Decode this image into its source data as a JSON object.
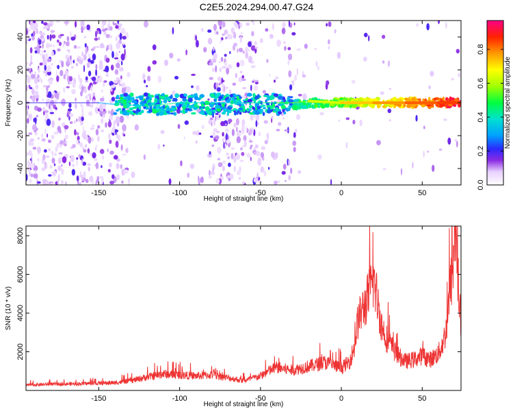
{
  "title": "C2E5.2024.294.00.47.G24",
  "chart_data": [
    {
      "type": "heatmap",
      "xlabel": "Height of straight line (km)",
      "ylabel": "Frequency (Hz)",
      "xlim": [
        -195,
        74
      ],
      "ylim": [
        -50,
        50
      ],
      "xticks": [
        -150,
        -100,
        -50,
        0,
        50
      ],
      "yticks": [
        -40,
        -20,
        0,
        20,
        40
      ],
      "colorbar": {
        "label": "Normalized spectral amplitude",
        "range": [
          0,
          0.97
        ],
        "ticks": [
          0.0,
          0.2,
          0.4,
          0.6,
          0.8
        ]
      },
      "ridge": [
        {
          "x": -195,
          "f": 0,
          "amp": 0.15
        },
        {
          "x": -150,
          "f": 0,
          "amp": 0.2
        },
        {
          "x": -140,
          "f": -1,
          "amp": 0.3
        },
        {
          "x": -120,
          "f": -2,
          "amp": 0.4
        },
        {
          "x": -100,
          "f": 0,
          "amp": 0.45
        },
        {
          "x": -80,
          "f": 0,
          "amp": 0.4
        },
        {
          "x": -60,
          "f": 0,
          "amp": 0.35
        },
        {
          "x": -40,
          "f": 0,
          "amp": 0.45
        },
        {
          "x": -30,
          "f": 0,
          "amp": 0.55
        },
        {
          "x": -20,
          "f": 1,
          "amp": 0.6
        },
        {
          "x": 0,
          "f": 0,
          "amp": 0.65
        },
        {
          "x": 20,
          "f": 0,
          "amp": 0.75
        },
        {
          "x": 40,
          "f": 0,
          "amp": 0.8
        },
        {
          "x": 60,
          "f": 0,
          "amp": 0.85
        },
        {
          "x": 74,
          "f": 0,
          "amp": 0.88
        }
      ]
    },
    {
      "type": "line",
      "xlabel": "Height of straight line (km)",
      "ylabel": "SNR (10 * v/v)",
      "xlim": [
        -195,
        74
      ],
      "ylim": [
        0,
        8500
      ],
      "xticks": [
        -150,
        -100,
        -50,
        0,
        50
      ],
      "yticks": [
        2000,
        4000,
        6000,
        8000
      ],
      "color": "#ee3333",
      "x": [
        -195,
        -180,
        -160,
        -140,
        -130,
        -120,
        -110,
        -100,
        -90,
        -80,
        -70,
        -60,
        -50,
        -45,
        -40,
        -35,
        -30,
        -20,
        -10,
        0,
        5,
        8,
        10,
        12,
        15,
        18,
        20,
        22,
        25,
        28,
        30,
        35,
        40,
        45,
        50,
        55,
        60,
        63,
        65,
        67,
        69,
        70,
        71,
        72,
        73,
        74
      ],
      "y": [
        280,
        320,
        350,
        400,
        500,
        700,
        850,
        800,
        750,
        800,
        650,
        500,
        750,
        1000,
        1200,
        1100,
        1050,
        1250,
        1450,
        1150,
        1500,
        2200,
        3500,
        4000,
        4500,
        5200,
        5700,
        4800,
        3300,
        2700,
        2400,
        1800,
        1500,
        1600,
        1800,
        1600,
        1900,
        2500,
        3200,
        5000,
        6500,
        7800,
        8200,
        6000,
        4300,
        3000
      ]
    }
  ]
}
